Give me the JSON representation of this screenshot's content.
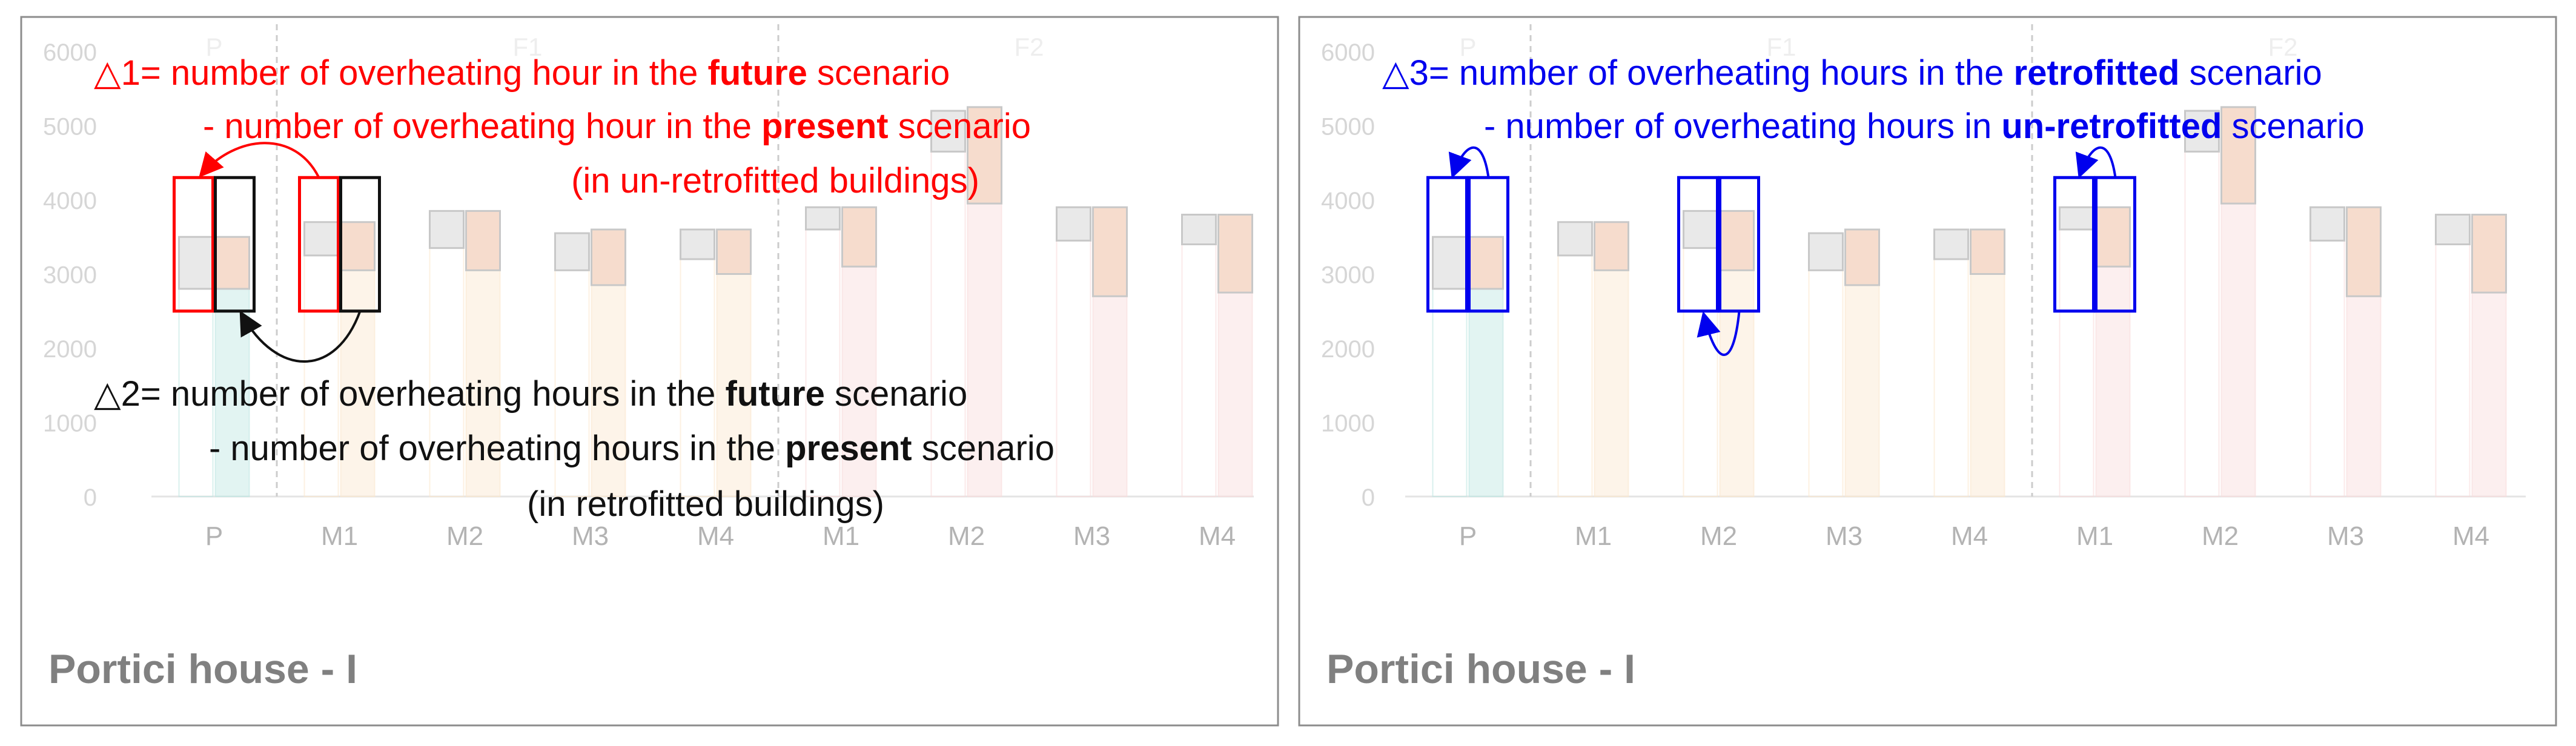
{
  "chart_data": [
    {
      "type": "bar",
      "panel_title": "Portici house - I",
      "ylim": [
        0,
        6000
      ],
      "yticks": [
        0,
        1000,
        2000,
        3000,
        4000,
        5000,
        6000
      ],
      "groups": [
        {
          "label": "P",
          "span": [
            0,
            1
          ]
        },
        {
          "label": "F1",
          "span": [
            1,
            5
          ]
        },
        {
          "label": "F2",
          "span": [
            5,
            9
          ]
        }
      ],
      "categories": [
        "P",
        "M1",
        "M2",
        "M3",
        "M4",
        "M1",
        "M2",
        "M3",
        "M4"
      ],
      "series": [
        {
          "values": [
            2800,
            3250,
            3350,
            3050,
            3200,
            3600,
            4650,
            3450,
            3400
          ],
          "upper": [
            3500,
            3700,
            3850,
            3550,
            3600,
            3900,
            5200,
            3900,
            3800
          ]
        },
        {
          "values": [
            2800,
            3050,
            3050,
            2850,
            3000,
            3100,
            3950,
            2700,
            2750
          ],
          "upper": [
            3500,
            3700,
            3850,
            3600,
            3600,
            3900,
            5250,
            3900,
            3800
          ]
        }
      ],
      "colors": [
        "#bfe6e2",
        "#fbe7cf",
        "#fbe7cf",
        "#fbe7cf",
        "#fbe7cf",
        "#f8dcdc",
        "#f8dcdc",
        "#f8dcdc",
        "#f8dcdc"
      ],
      "annotations": {
        "delta1": {
          "line1": [
            "△1= number of overheating hour in the ",
            "future",
            " scenario"
          ],
          "line2": [
            "- number of overheating hour in the ",
            "present",
            " scenario"
          ],
          "line3": "(in un-retrofitted buildings)",
          "color": "#ff0000"
        },
        "delta2": {
          "line1": [
            "△2= number of overheating hours in the ",
            "future",
            " scenario"
          ],
          "line2": [
            "- number of overheating hours in the ",
            "present",
            " scenario"
          ],
          "line3": "(in retrofitted buildings)",
          "color": "#111111"
        }
      }
    },
    {
      "type": "bar",
      "panel_title": "Portici house - I",
      "ylim": [
        0,
        6000
      ],
      "yticks": [
        0,
        1000,
        2000,
        3000,
        4000,
        5000,
        6000
      ],
      "groups": [
        {
          "label": "P",
          "span": [
            0,
            1
          ]
        },
        {
          "label": "F1",
          "span": [
            1,
            5
          ]
        },
        {
          "label": "F2",
          "span": [
            5,
            9
          ]
        }
      ],
      "categories": [
        "P",
        "M1",
        "M2",
        "M3",
        "M4",
        "M1",
        "M2",
        "M3",
        "M4"
      ],
      "series": [
        {
          "values": [
            2800,
            3250,
            3350,
            3050,
            3200,
            3600,
            4650,
            3450,
            3400
          ],
          "upper": [
            3500,
            3700,
            3850,
            3550,
            3600,
            3900,
            5200,
            3900,
            3800
          ]
        },
        {
          "values": [
            2800,
            3050,
            3050,
            2850,
            3000,
            3100,
            3950,
            2700,
            2750
          ],
          "upper": [
            3500,
            3700,
            3850,
            3600,
            3600,
            3900,
            5250,
            3900,
            3800
          ]
        }
      ],
      "colors": [
        "#bfe6e2",
        "#fbe7cf",
        "#fbe7cf",
        "#fbe7cf",
        "#fbe7cf",
        "#f8dcdc",
        "#f8dcdc",
        "#f8dcdc",
        "#f8dcdc"
      ],
      "annotations": {
        "delta3": {
          "line1": [
            "△3= number of overheating hours in the ",
            "retrofitted",
            " scenario"
          ],
          "line2": [
            "- number of overheating hours in ",
            "un-retrofitted",
            " scenario"
          ],
          "color": "#0000ee"
        }
      }
    }
  ]
}
